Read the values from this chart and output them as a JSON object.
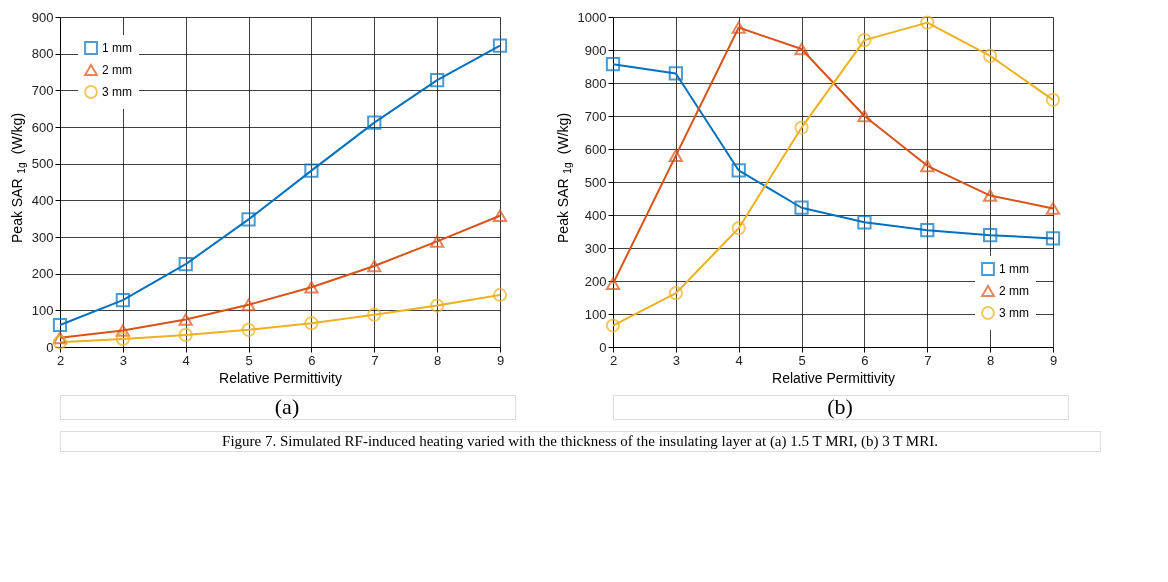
{
  "chart_data": [
    {
      "type": "line",
      "x": [
        2,
        3,
        4,
        5,
        6,
        7,
        8,
        9
      ],
      "xlabel": "Relative Permittivity",
      "ylabel": "Peak SAR$_{1g}$ (W/kg)",
      "xlim": [
        2,
        9
      ],
      "xticks": [
        2,
        3,
        4,
        5,
        6,
        7,
        8,
        9
      ],
      "ylim": [
        0,
        900
      ],
      "yticks": [
        0,
        100,
        200,
        300,
        400,
        500,
        600,
        700,
        800,
        900
      ],
      "grid": true,
      "legend": "top left",
      "line_style": "solid",
      "annotations": [
        "(a)",
        "Figure 7. Simulated RF-induced heating varied with the thickness of the insulating layer at (a) 1.5 T MRI, (b) 3 T MRI."
      ],
      "series": [
        {
          "name": "1 mm",
          "color": "#0072bd",
          "marker": "square",
          "values": [
            60,
            128,
            226,
            348,
            481,
            612,
            728,
            822
          ]
        },
        {
          "name": "2 mm",
          "color": "#d95319",
          "marker": "triangle",
          "values": [
            25,
            45,
            75,
            115,
            163,
            221,
            288,
            358
          ]
        },
        {
          "name": "3 mm",
          "color": "#edb120",
          "marker": "circle",
          "values": [
            13,
            22,
            33,
            47,
            65,
            88,
            113,
            142
          ]
        }
      ]
    },
    {
      "type": "line",
      "x": [
        2,
        3,
        4,
        5,
        6,
        7,
        8,
        9
      ],
      "xlabel": "Relative Permittivity",
      "ylabel": "Peak SAR$_{1g}$ (W/kg)",
      "xlim": [
        2,
        9
      ],
      "xticks": [
        2,
        3,
        4,
        5,
        6,
        7,
        8,
        9
      ],
      "ylim": [
        0,
        1000
      ],
      "yticks": [
        0,
        100,
        200,
        300,
        400,
        500,
        600,
        700,
        800,
        900,
        1000
      ],
      "grid": true,
      "legend": "bottom right",
      "line_style": "solid",
      "annotations": [
        "(b)"
      ],
      "series": [
        {
          "name": "1 mm",
          "color": "#0072bd",
          "marker": "square",
          "values": [
            857,
            829,
            535,
            422,
            378,
            354,
            339,
            329
          ]
        },
        {
          "name": "2 mm",
          "color": "#d95319",
          "marker": "triangle",
          "values": [
            192,
            580,
            968,
            903,
            700,
            549,
            459,
            420
          ]
        },
        {
          "name": "3 mm",
          "color": "#edb120",
          "marker": "circle",
          "values": [
            65,
            163,
            360,
            665,
            930,
            983,
            882,
            749
          ]
        }
      ]
    }
  ]
}
